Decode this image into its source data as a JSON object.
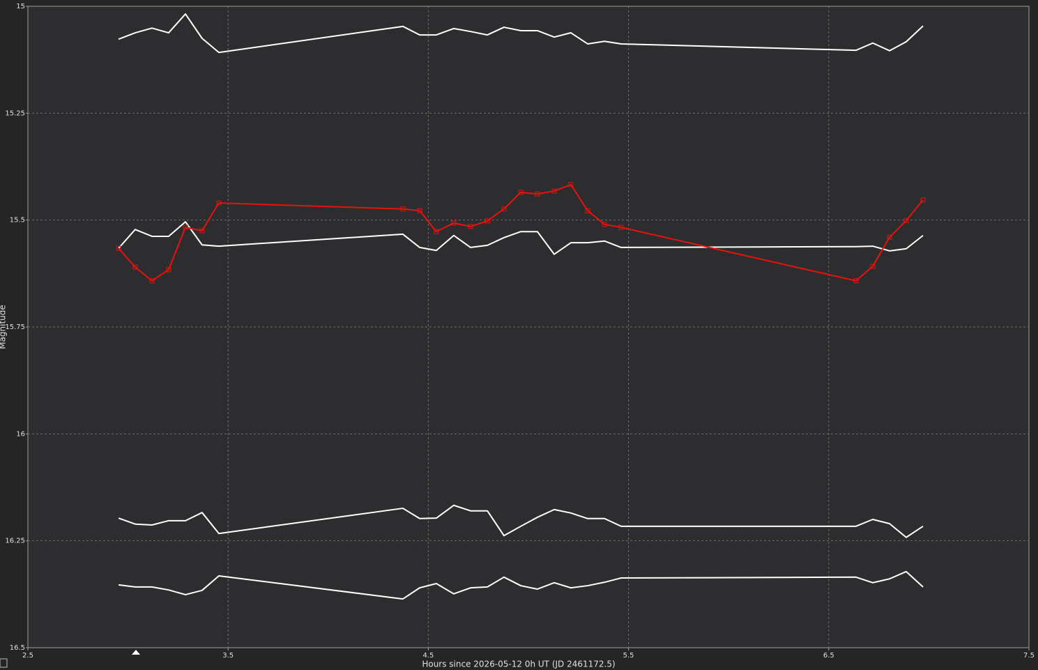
{
  "chart_data": {
    "type": "line",
    "xlabel": "Hours since 2026-05-12 0h UT (JD 2461172.5)",
    "ylabel": "Magnitude",
    "x": [
      2.953,
      3.036,
      3.12,
      3.203,
      3.287,
      3.37,
      3.454,
      4.373,
      4.457,
      4.54,
      4.627,
      4.711,
      4.795,
      4.878,
      4.962,
      5.045,
      5.129,
      5.212,
      5.296,
      5.38,
      5.463,
      6.636,
      6.72,
      6.804,
      6.887,
      6.971
    ],
    "series": [
      {
        "color": "#ffffff",
        "values": [
          15.077,
          15.062,
          15.051,
          15.062,
          15.018,
          15.075,
          15.108,
          15.047,
          15.067,
          15.067,
          15.052,
          15.059,
          15.067,
          15.049,
          15.057,
          15.057,
          15.072,
          15.062,
          15.088,
          15.082,
          15.088,
          15.103,
          15.086,
          15.104,
          15.083,
          15.046
        ]
      },
      {
        "color": "#ffffff",
        "values": [
          15.566,
          15.522,
          15.538,
          15.538,
          15.504,
          15.558,
          15.561,
          15.533,
          15.564,
          15.571,
          15.536,
          15.564,
          15.559,
          15.541,
          15.527,
          15.527,
          15.58,
          15.553,
          15.553,
          15.549,
          15.564,
          15.562,
          15.561,
          15.572,
          15.567,
          15.536
        ]
      },
      {
        "color": "#ffffff",
        "values": [
          16.197,
          16.211,
          16.213,
          16.203,
          16.203,
          16.184,
          16.233,
          16.174,
          16.198,
          16.197,
          16.167,
          16.18,
          16.18,
          16.238,
          16.216,
          16.195,
          16.177,
          16.185,
          16.198,
          16.198,
          16.216,
          16.216,
          16.2,
          16.21,
          16.242,
          16.216
        ]
      },
      {
        "color": "#ffffff",
        "values": [
          16.353,
          16.358,
          16.358,
          16.365,
          16.376,
          16.366,
          16.332,
          16.386,
          16.36,
          16.35,
          16.374,
          16.36,
          16.358,
          16.335,
          16.355,
          16.363,
          16.348,
          16.36,
          16.355,
          16.347,
          16.337,
          16.335,
          16.348,
          16.339,
          16.322,
          16.358
        ]
      },
      {
        "color": "#e8120c",
        "marker": "square",
        "values": [
          15.566,
          15.61,
          15.642,
          15.616,
          15.517,
          15.525,
          15.46,
          15.474,
          15.478,
          15.527,
          15.507,
          15.515,
          15.502,
          15.474,
          15.435,
          15.439,
          15.432,
          15.417,
          15.478,
          15.51,
          15.517,
          15.642,
          15.608,
          15.54,
          15.501,
          15.453
        ]
      }
    ],
    "xlim": [
      2.5,
      7.5
    ],
    "xticks": [
      2.5,
      3.5,
      4.5,
      5.5,
      6.5,
      7.5
    ],
    "ylim": [
      16.5,
      15
    ],
    "yticks": [
      15,
      15.25,
      15.5,
      15.75,
      16,
      16.25,
      16.5
    ],
    "grid": true
  }
}
